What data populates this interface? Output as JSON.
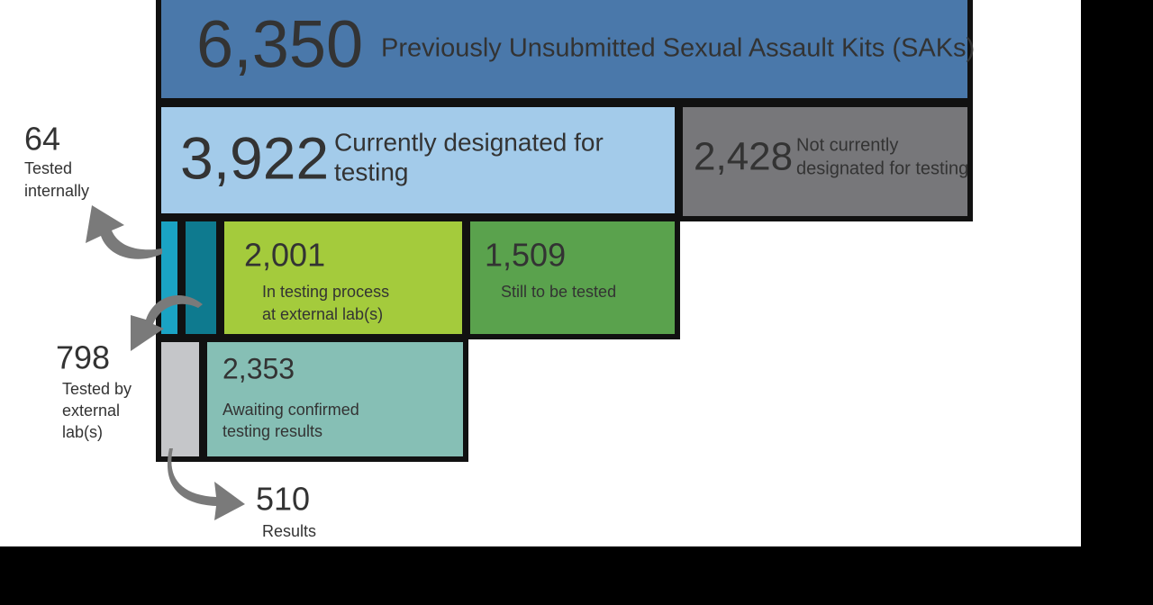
{
  "boxes": {
    "total": {
      "value": "6,350",
      "label": "Previously Unsubmitted Sexual Assault Kits (SAKs)"
    },
    "designated": {
      "value": "3,922",
      "label": [
        "Currently designated for",
        "testing"
      ]
    },
    "not_designated": {
      "value": "2,428",
      "label": [
        "Not currently",
        "designated for testing"
      ]
    },
    "in_testing": {
      "value": "2,001",
      "label": [
        "In testing process",
        "at external lab(s)"
      ]
    },
    "still_to_test": {
      "value": "1,509",
      "label": [
        "Still to be tested"
      ]
    },
    "awaiting": {
      "value": "2,353",
      "label": [
        "Awaiting confirmed",
        "testing results"
      ]
    }
  },
  "callouts": {
    "tested_internally": {
      "value": "64",
      "label": [
        "Tested",
        "internally"
      ]
    },
    "tested_external": {
      "value": "798",
      "label": [
        "Tested by",
        "external",
        "lab(s)"
      ]
    },
    "results": {
      "value": "510",
      "label": [
        "Results"
      ]
    }
  }
}
